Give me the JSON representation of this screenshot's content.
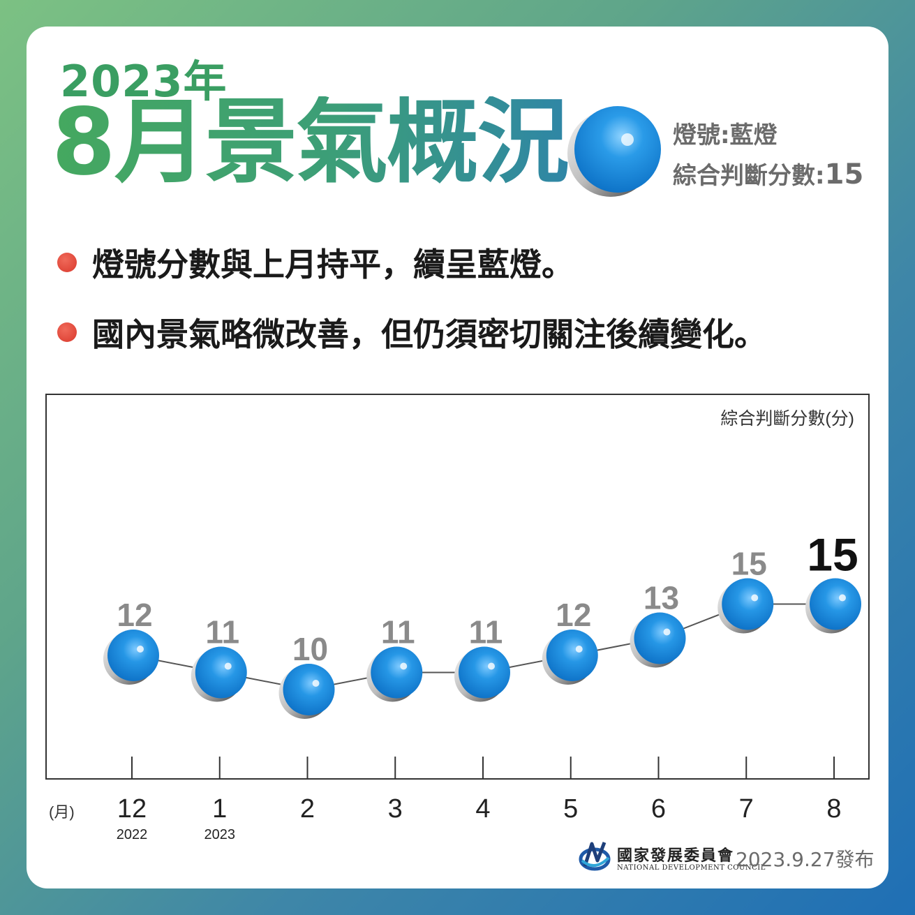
{
  "header": {
    "year": "2023年",
    "title": "8月景氣概況",
    "signal_label": "燈號:藍燈",
    "score_label": "綜合判斷分數:",
    "score_value": "15"
  },
  "bullets": [
    "燈號分數與上月持平，續呈藍燈。",
    "國內景氣略微改善，但仍須密切關注後續變化。"
  ],
  "colors": {
    "blue_light": "#1f8fe0",
    "title_green": "#3a9e62",
    "bullet_red": "#d9382c"
  },
  "chart_data": {
    "type": "line",
    "ylabel": "綜合判斷分數(分)",
    "xlabel": "(月)",
    "categories": [
      "12",
      "1",
      "2",
      "3",
      "4",
      "5",
      "6",
      "7",
      "8"
    ],
    "category_years": [
      "2022",
      "2023",
      "",
      "",
      "",
      "",
      "",
      "",
      ""
    ],
    "values": [
      12,
      11,
      10,
      11,
      11,
      12,
      13,
      15,
      15
    ],
    "labels": [
      "12",
      "11",
      "10",
      "11",
      "11",
      "12",
      "13",
      "15",
      "15"
    ],
    "highlight_last": true,
    "marker": "blue-light-ball",
    "grid": false
  },
  "footer": {
    "org_zh": "國家發展委員會",
    "org_en": "NATIONAL DEVELOPMENT COUNCIL",
    "date": "2023.9.27發布"
  }
}
